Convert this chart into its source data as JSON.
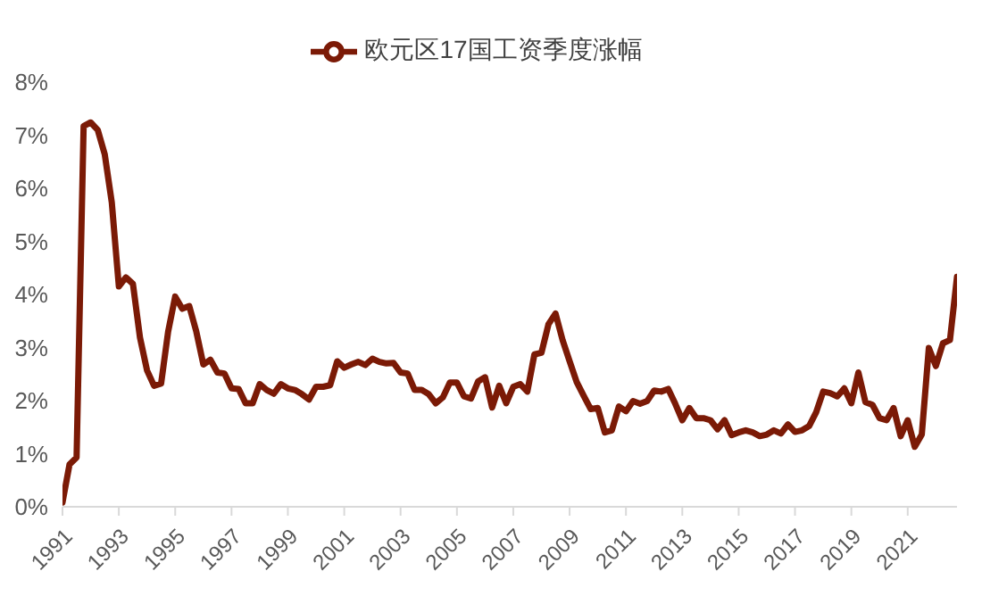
{
  "chart_data": {
    "type": "line",
    "x": [
      1991,
      1991.25,
      1991.5,
      1991.75,
      1992,
      1992.25,
      1992.5,
      1992.75,
      1993,
      1993.25,
      1993.5,
      1993.75,
      1994,
      1994.25,
      1994.5,
      1994.75,
      1995,
      1995.25,
      1995.5,
      1995.75,
      1996,
      1996.25,
      1996.5,
      1996.75,
      1997,
      1997.25,
      1997.5,
      1997.75,
      1998,
      1998.25,
      1998.5,
      1998.75,
      1999,
      1999.25,
      1999.5,
      1999.75,
      2000,
      2000.25,
      2000.5,
      2000.75,
      2001,
      2001.25,
      2001.5,
      2001.75,
      2002,
      2002.25,
      2002.5,
      2002.75,
      2003,
      2003.25,
      2003.5,
      2003.75,
      2004,
      2004.25,
      2004.5,
      2004.75,
      2005,
      2005.25,
      2005.5,
      2005.75,
      2006,
      2006.25,
      2006.5,
      2006.75,
      2007,
      2007.25,
      2007.5,
      2007.75,
      2008,
      2008.25,
      2008.5,
      2008.75,
      2009,
      2009.25,
      2009.5,
      2009.75,
      2010,
      2010.25,
      2010.5,
      2010.75,
      2011,
      2011.25,
      2011.5,
      2011.75,
      2012,
      2012.25,
      2012.5,
      2012.75,
      2013,
      2013.25,
      2013.5,
      2013.75,
      2014,
      2014.25,
      2014.5,
      2014.75,
      2015,
      2015.25,
      2015.5,
      2015.75,
      2016,
      2016.25,
      2016.5,
      2016.75,
      2017,
      2017.25,
      2017.5,
      2017.75,
      2018,
      2018.25,
      2018.5,
      2018.75,
      2019,
      2019.25,
      2019.5,
      2019.75,
      2020,
      2020.25,
      2020.5,
      2020.75,
      2021,
      2021.25,
      2021.5,
      2021.75,
      2022,
      2022.25,
      2022.5,
      2022.75
    ],
    "series": [
      {
        "name": "欧元区17国工资季度涨幅",
        "color": "#7b1a06",
        "values": [
          0.08,
          0.8,
          0.93,
          7.17,
          7.24,
          7.1,
          6.64,
          5.73,
          4.15,
          4.32,
          4.2,
          3.19,
          2.57,
          2.28,
          2.32,
          3.3,
          3.96,
          3.73,
          3.78,
          3.3,
          2.68,
          2.77,
          2.53,
          2.51,
          2.23,
          2.22,
          1.95,
          1.95,
          2.31,
          2.2,
          2.13,
          2.31,
          2.23,
          2.2,
          2.12,
          2.02,
          2.26,
          2.26,
          2.29,
          2.74,
          2.62,
          2.68,
          2.73,
          2.67,
          2.79,
          2.73,
          2.7,
          2.71,
          2.53,
          2.51,
          2.2,
          2.2,
          2.12,
          1.95,
          2.06,
          2.34,
          2.34,
          2.08,
          2.04,
          2.36,
          2.44,
          1.87,
          2.28,
          1.95,
          2.26,
          2.31,
          2.17,
          2.87,
          2.9,
          3.44,
          3.64,
          3.14,
          2.74,
          2.35,
          2.09,
          1.84,
          1.86,
          1.4,
          1.44,
          1.89,
          1.8,
          1.99,
          1.94,
          1.99,
          2.19,
          2.17,
          2.22,
          1.94,
          1.63,
          1.86,
          1.67,
          1.67,
          1.63,
          1.46,
          1.63,
          1.35,
          1.4,
          1.44,
          1.4,
          1.33,
          1.36,
          1.44,
          1.38,
          1.55,
          1.41,
          1.44,
          1.52,
          1.78,
          2.17,
          2.14,
          2.08,
          2.23,
          1.95,
          2.53,
          1.97,
          1.92,
          1.67,
          1.63,
          1.86,
          1.33,
          1.63,
          1.13,
          1.36,
          2.99,
          2.65,
          3.08,
          3.14,
          4.33
        ]
      }
    ],
    "xlim": [
      1991,
      2022.75
    ],
    "xticks": [
      1991,
      1993,
      1995,
      1997,
      1999,
      2001,
      2003,
      2005,
      2007,
      2009,
      2011,
      2013,
      2015,
      2017,
      2019,
      2021
    ],
    "ylim": [
      0,
      8
    ],
    "yticks": [
      {
        "value": 0,
        "label": "0%"
      },
      {
        "value": 1,
        "label": "1%"
      },
      {
        "value": 2,
        "label": "2%"
      },
      {
        "value": 3,
        "label": "3%"
      },
      {
        "value": 4,
        "label": "4%"
      },
      {
        "value": 5,
        "label": "5%"
      },
      {
        "value": 6,
        "label": "6%"
      },
      {
        "value": 7,
        "label": "7%"
      },
      {
        "value": 8,
        "label": "8%"
      }
    ],
    "grid": false,
    "legend": "top",
    "marker": "none",
    "line_style": "solid"
  }
}
